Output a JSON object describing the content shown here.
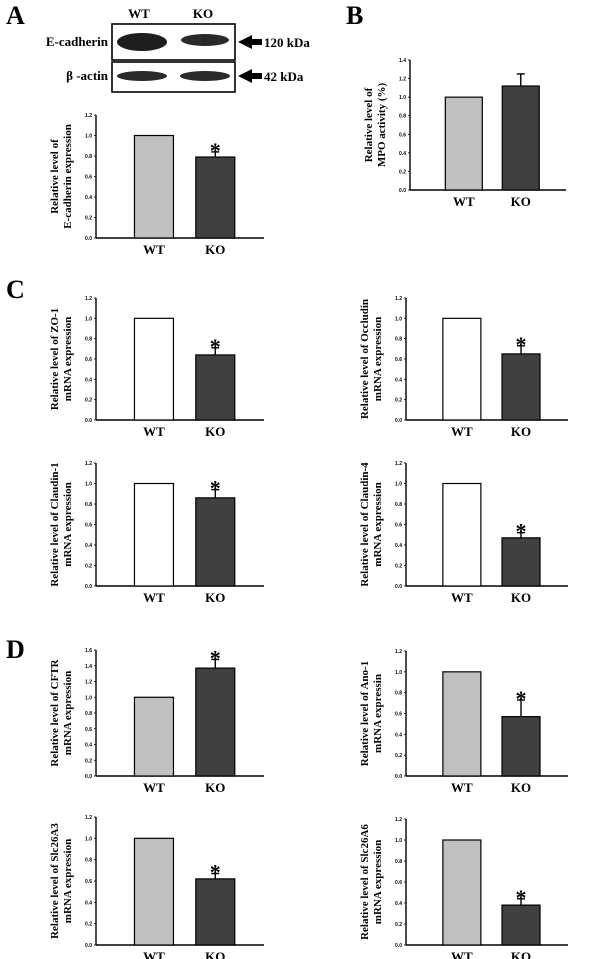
{
  "panels": {
    "A": "A",
    "B": "B",
    "C": "C",
    "D": "D"
  },
  "blot": {
    "lanes": [
      "WT",
      "KO"
    ],
    "rows": [
      {
        "name": "E-cadherin",
        "size": "120 kDa"
      },
      {
        "name": "β -actin",
        "size": "42 kDa"
      }
    ]
  },
  "chart_data": [
    {
      "id": "ecad",
      "type": "bar",
      "categories": [
        "WT",
        "KO"
      ],
      "values": [
        1.0,
        0.79
      ],
      "errors": [
        0,
        0.05
      ],
      "significant": [
        false,
        true
      ],
      "ylabel": [
        "Relative level of",
        "E-cadherin expression"
      ],
      "ylim": [
        0,
        1.2
      ],
      "yticks": [
        "0.0",
        "0.2",
        "0.4",
        "0.6",
        "0.8",
        "1.0",
        "1.2"
      ],
      "colors": [
        "#c0c0c0",
        "#404040"
      ]
    },
    {
      "id": "mpo",
      "type": "bar",
      "categories": [
        "WT",
        "KO"
      ],
      "values": [
        1.0,
        1.12
      ],
      "errors": [
        0,
        0.13
      ],
      "significant": [
        false,
        false
      ],
      "ylabel": [
        "Relative level of",
        "MPO activity (%)"
      ],
      "ylim": [
        0,
        1.4
      ],
      "yticks": [
        "0.0",
        "0.2",
        "0.4",
        "0.6",
        "0.8",
        "1.0",
        "1.2",
        "1.4"
      ],
      "colors": [
        "#c0c0c0",
        "#404040"
      ]
    },
    {
      "id": "zo1",
      "type": "bar",
      "categories": [
        "WT",
        "KO"
      ],
      "values": [
        1.0,
        0.64
      ],
      "errors": [
        0,
        0.07
      ],
      "significant": [
        false,
        true
      ],
      "ylabel": [
        "Relative level of  ZO-1",
        "mRNA expression"
      ],
      "ylim": [
        0,
        1.2
      ],
      "yticks": [
        "0.0",
        "0.2",
        "0.4",
        "0.6",
        "0.8",
        "1.0",
        "1.2"
      ],
      "colors": [
        "#ffffff",
        "#404040"
      ]
    },
    {
      "id": "occludin",
      "type": "bar",
      "categories": [
        "WT",
        "KO"
      ],
      "values": [
        1.0,
        0.65
      ],
      "errors": [
        0,
        0.08
      ],
      "significant": [
        false,
        true
      ],
      "ylabel": [
        "Relative level of  Occludin",
        "mRNA expression"
      ],
      "ylim": [
        0,
        1.2
      ],
      "yticks": [
        "0.0",
        "0.2",
        "0.4",
        "0.6",
        "0.8",
        "1.0",
        "1.2"
      ],
      "colors": [
        "#ffffff",
        "#404040"
      ]
    },
    {
      "id": "claudin1",
      "type": "bar",
      "categories": [
        "WT",
        "KO"
      ],
      "values": [
        1.0,
        0.86
      ],
      "errors": [
        0,
        0.08
      ],
      "significant": [
        false,
        true
      ],
      "ylabel": [
        "Relative level of  Claudin-1",
        "mRNA expression"
      ],
      "ylim": [
        0,
        1.2
      ],
      "yticks": [
        "0.0",
        "0.2",
        "0.4",
        "0.6",
        "0.8",
        "1.0",
        "1.2"
      ],
      "colors": [
        "#ffffff",
        "#404040"
      ]
    },
    {
      "id": "claudin4",
      "type": "bar",
      "categories": [
        "WT",
        "KO"
      ],
      "values": [
        1.0,
        0.47
      ],
      "errors": [
        0,
        0.05
      ],
      "significant": [
        false,
        true
      ],
      "ylabel": [
        "Relative level of  Claudin-4",
        "mRNA expression"
      ],
      "ylim": [
        0,
        1.2
      ],
      "yticks": [
        "0.0",
        "0.2",
        "0.4",
        "0.6",
        "0.8",
        "1.0",
        "1.2"
      ],
      "colors": [
        "#ffffff",
        "#404040"
      ]
    },
    {
      "id": "cftr",
      "type": "bar",
      "categories": [
        "WT",
        "KO"
      ],
      "values": [
        1.0,
        1.37
      ],
      "errors": [
        0,
        0.11
      ],
      "significant": [
        false,
        true
      ],
      "ylabel": [
        "Relative level of  CFTR",
        "mRNA expression"
      ],
      "ylim": [
        0,
        1.6
      ],
      "yticks": [
        "0.0",
        "0.2",
        "0.4",
        "0.6",
        "0.8",
        "1.0",
        "1.2",
        "1.4",
        "1.6"
      ],
      "colors": [
        "#c0c0c0",
        "#404040"
      ]
    },
    {
      "id": "ano1",
      "type": "bar",
      "categories": [
        "WT",
        "KO"
      ],
      "values": [
        1.0,
        0.57
      ],
      "errors": [
        0,
        0.16
      ],
      "significant": [
        false,
        true
      ],
      "ylabel": [
        "Relative level of  Ano-1",
        "mRNA expressin"
      ],
      "ylim": [
        0,
        1.2
      ],
      "yticks": [
        "0.0",
        "0.2",
        "0.4",
        "0.6",
        "0.8",
        "1.0",
        "1.2"
      ],
      "colors": [
        "#c0c0c0",
        "#404040"
      ]
    },
    {
      "id": "slc26a3",
      "type": "bar",
      "categories": [
        "WT",
        "KO"
      ],
      "values": [
        1.0,
        0.62
      ],
      "errors": [
        0,
        0.05
      ],
      "significant": [
        false,
        true
      ],
      "ylabel": [
        "Relative level of  Slc26A3",
        "mRNA expression"
      ],
      "ylim": [
        0,
        1.2
      ],
      "yticks": [
        "0.0",
        "0.2",
        "0.4",
        "0.6",
        "0.8",
        "1.0",
        "1.2"
      ],
      "colors": [
        "#c0c0c0",
        "#404040"
      ]
    },
    {
      "id": "slc26a6",
      "type": "bar",
      "categories": [
        "WT",
        "KO"
      ],
      "values": [
        1.0,
        0.38
      ],
      "errors": [
        0,
        0.06
      ],
      "significant": [
        false,
        true
      ],
      "ylabel": [
        "Relative level of  Slc26A6",
        "mRNA expression"
      ],
      "ylim": [
        0,
        1.2
      ],
      "yticks": [
        "0.0",
        "0.2",
        "0.4",
        "0.6",
        "0.8",
        "1.0",
        "1.2"
      ],
      "colors": [
        "#c0c0c0",
        "#404040"
      ]
    }
  ]
}
